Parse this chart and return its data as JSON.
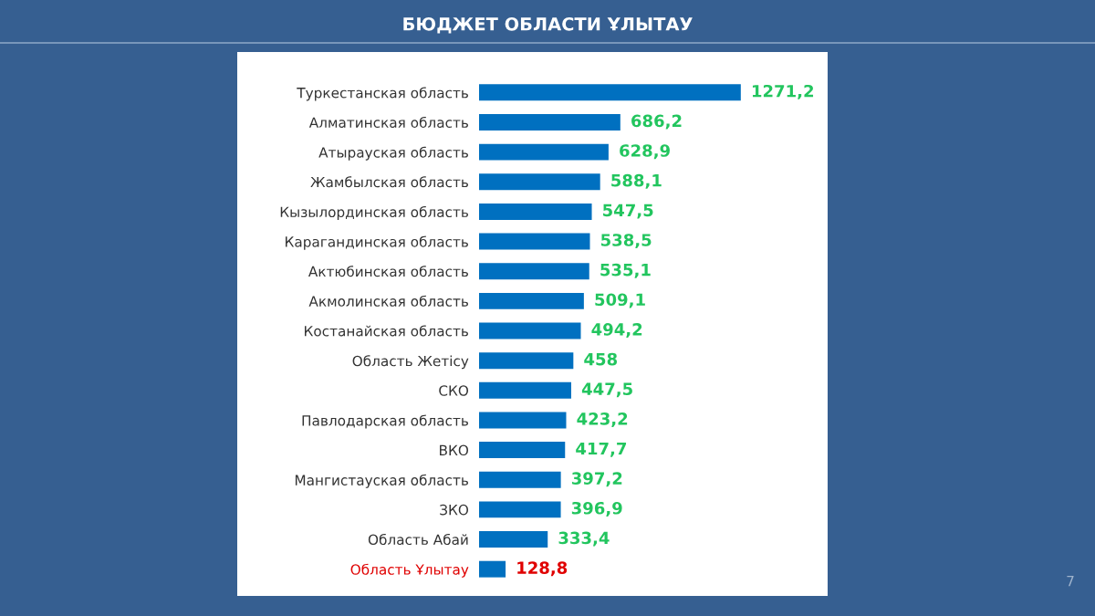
{
  "chart_data": {
    "type": "bar",
    "orientation": "horizontal",
    "title": "БЮДЖЕТ ОБЛАСТИ ҰЛЫТАУ",
    "categories": [
      "Туркестанская область",
      "Алматинская область",
      "Атырауская область",
      "Жамбылская область",
      "Кызылординская область",
      "Карагандинская область",
      "Актюбинская область",
      "Акмолинская область",
      "Костанайская область",
      "Область Жетісу",
      "СКО",
      "Павлодарская область",
      "ВКО",
      "Мангистауская область",
      "ЗКО",
      "Область Абай",
      "Область Ұлытау"
    ],
    "values": [
      1271.2,
      686.2,
      628.9,
      588.1,
      547.5,
      538.5,
      535.1,
      509.1,
      494.2,
      458,
      447.5,
      423.2,
      417.7,
      397.2,
      396.9,
      333.4,
      128.8
    ],
    "value_labels": [
      "1271,2",
      "686,2",
      "628,9",
      "588,1",
      "547,5",
      "538,5",
      "535,1",
      "509,1",
      "494,2",
      "458",
      "447,5",
      "423,2",
      "417,7",
      "397,2",
      "396,9",
      "333,4",
      "128,8"
    ],
    "color": "#0070c0",
    "annotations": [
      "7"
    ]
  }
}
